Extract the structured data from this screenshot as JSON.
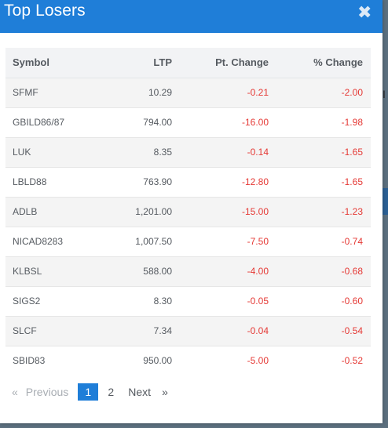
{
  "modal": {
    "title": "Top Losers",
    "close_glyph": "✖"
  },
  "table": {
    "columns": [
      "Symbol",
      "LTP",
      "Pt. Change",
      "% Change"
    ],
    "rows": [
      {
        "symbol": "SFMF",
        "ltp": "10.29",
        "pt_change": "-0.21",
        "pct_change": "-2.00"
      },
      {
        "symbol": "GBILD86/87",
        "ltp": "794.00",
        "pt_change": "-16.00",
        "pct_change": "-1.98"
      },
      {
        "symbol": "LUK",
        "ltp": "8.35",
        "pt_change": "-0.14",
        "pct_change": "-1.65"
      },
      {
        "symbol": "LBLD88",
        "ltp": "763.90",
        "pt_change": "-12.80",
        "pct_change": "-1.65"
      },
      {
        "symbol": "ADLB",
        "ltp": "1,201.00",
        "pt_change": "-15.00",
        "pct_change": "-1.23"
      },
      {
        "symbol": "NICAD8283",
        "ltp": "1,007.50",
        "pt_change": "-7.50",
        "pct_change": "-0.74"
      },
      {
        "symbol": "KLBSL",
        "ltp": "588.00",
        "pt_change": "-4.00",
        "pct_change": "-0.68"
      },
      {
        "symbol": "SIGS2",
        "ltp": "8.30",
        "pt_change": "-0.05",
        "pct_change": "-0.60"
      },
      {
        "symbol": "SLCF",
        "ltp": "7.34",
        "pt_change": "-0.04",
        "pct_change": "-0.54"
      },
      {
        "symbol": "SBID83",
        "ltp": "950.00",
        "pt_change": "-5.00",
        "pct_change": "-0.52"
      }
    ]
  },
  "pagination": {
    "prev_arrow": "«",
    "prev_label": "Previous",
    "pages": [
      "1",
      "2"
    ],
    "current_page": "1",
    "next_label": "Next",
    "next_arrow": "»"
  },
  "colors": {
    "header": "#1f7ed8",
    "negative": "#e53935"
  }
}
